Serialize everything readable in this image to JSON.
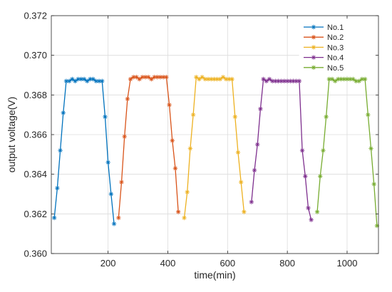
{
  "chart_data": {
    "type": "line",
    "title": "",
    "xlabel": "time(min)",
    "ylabel": "output voltage(V)",
    "xlim": [
      10,
      1105
    ],
    "ylim": [
      0.36,
      0.372
    ],
    "xticks": [
      200,
      400,
      600,
      800,
      1000
    ],
    "xtick_labels": [
      "200",
      "400",
      "600",
      "800",
      "1000"
    ],
    "yticks": [
      0.36,
      0.362,
      0.364,
      0.366,
      0.368,
      0.37,
      0.372
    ],
    "ytick_labels": [
      "0.360",
      "0.362",
      "0.364",
      "0.366",
      "0.368",
      "0.370",
      "0.372"
    ],
    "grid": true,
    "legend_position": "top-right",
    "marker": "asterisk",
    "series": [
      {
        "name": "No.1",
        "color": "#0072BD",
        "x": [
          20,
          30,
          40,
          50,
          60,
          70,
          80,
          90,
          100,
          110,
          120,
          130,
          140,
          150,
          160,
          170,
          180,
          190,
          200,
          210,
          220
        ],
        "y": [
          0.3618,
          0.3633,
          0.3652,
          0.3671,
          0.3687,
          0.3687,
          0.3688,
          0.3687,
          0.3688,
          0.3688,
          0.3688,
          0.3687,
          0.3688,
          0.3688,
          0.3687,
          0.3687,
          0.3687,
          0.3669,
          0.3646,
          0.363,
          0.3615
        ]
      },
      {
        "name": "No.2",
        "color": "#D95319",
        "x": [
          235,
          245,
          255,
          265,
          275,
          285,
          295,
          305,
          315,
          325,
          335,
          345,
          355,
          365,
          375,
          385,
          395,
          405,
          415,
          425,
          435
        ],
        "y": [
          0.3618,
          0.3636,
          0.3659,
          0.3678,
          0.3688,
          0.3689,
          0.3689,
          0.3688,
          0.3689,
          0.3689,
          0.3689,
          0.3688,
          0.3689,
          0.3689,
          0.3689,
          0.3689,
          0.3689,
          0.3675,
          0.3657,
          0.3643,
          0.3621
        ]
      },
      {
        "name": "No.3",
        "color": "#EDB120",
        "x": [
          455,
          465,
          475,
          485,
          495,
          505,
          515,
          525,
          535,
          545,
          555,
          565,
          575,
          585,
          595,
          605,
          615,
          625,
          635,
          645,
          655
        ],
        "y": [
          0.3618,
          0.3631,
          0.3653,
          0.367,
          0.3689,
          0.3688,
          0.3689,
          0.3688,
          0.3688,
          0.3688,
          0.3688,
          0.3688,
          0.3688,
          0.3689,
          0.3688,
          0.3688,
          0.3688,
          0.3669,
          0.3651,
          0.3636,
          0.3621
        ]
      },
      {
        "name": "No.4",
        "color": "#7E2F8E",
        "x": [
          680,
          690,
          700,
          710,
          720,
          730,
          740,
          750,
          760,
          770,
          780,
          790,
          800,
          810,
          820,
          830,
          840,
          850,
          860,
          870,
          880
        ],
        "y": [
          0.3626,
          0.3642,
          0.3655,
          0.3673,
          0.3688,
          0.3687,
          0.3688,
          0.3687,
          0.3687,
          0.3687,
          0.3687,
          0.3687,
          0.3687,
          0.3687,
          0.3687,
          0.3687,
          0.3687,
          0.3652,
          0.3639,
          0.3623,
          0.3617
        ]
      },
      {
        "name": "No.5",
        "color": "#77AC30",
        "x": [
          900,
          910,
          920,
          930,
          940,
          950,
          960,
          970,
          980,
          990,
          1000,
          1010,
          1020,
          1030,
          1040,
          1050,
          1060,
          1070,
          1080,
          1090,
          1100
        ],
        "y": [
          0.3621,
          0.3639,
          0.3652,
          0.3669,
          0.3688,
          0.3688,
          0.3687,
          0.3688,
          0.3688,
          0.3688,
          0.3688,
          0.3688,
          0.3688,
          0.3687,
          0.3687,
          0.3688,
          0.3688,
          0.367,
          0.3653,
          0.3635,
          0.3614
        ]
      }
    ]
  }
}
